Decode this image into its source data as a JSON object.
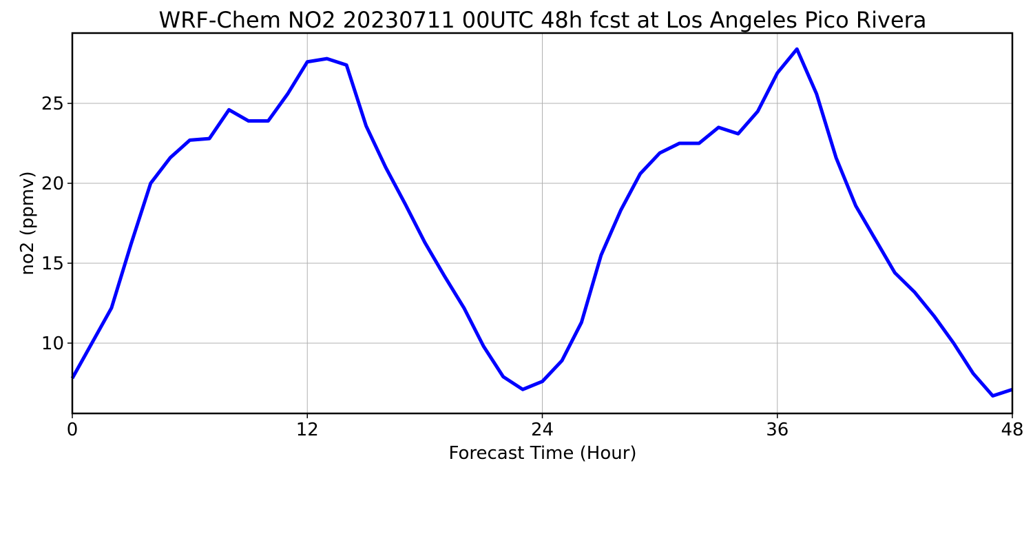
{
  "chart_data": {
    "type": "line",
    "title": "WRF-Chem NO2  20230711 00UTC 48h fcst at Los Angeles Pico Rivera",
    "xlabel": "Forecast Time (Hour)",
    "ylabel": "no2  (ppmv)",
    "xlim": [
      0,
      48
    ],
    "ylim": [
      5.6,
      29.4
    ],
    "xticks": [
      0,
      12,
      24,
      36,
      48
    ],
    "yticks": [
      10,
      15,
      20,
      25
    ],
    "grid": true,
    "legend": "none",
    "series": [
      {
        "color": "#0000ff",
        "x": [
          0,
          1,
          2,
          3,
          4,
          5,
          6,
          7,
          8,
          9,
          10,
          11,
          12,
          13,
          14,
          15,
          16,
          17,
          18,
          19,
          20,
          21,
          22,
          23,
          24,
          25,
          26,
          27,
          28,
          29,
          30,
          31,
          32,
          33,
          34,
          35,
          36,
          37,
          38,
          39,
          40,
          41,
          42,
          43,
          44,
          45,
          46,
          47,
          48
        ],
        "y": [
          7.8,
          10.0,
          12.2,
          16.2,
          20.0,
          21.6,
          22.7,
          22.8,
          24.6,
          23.9,
          23.9,
          25.6,
          27.6,
          27.8,
          27.4,
          23.6,
          21.0,
          18.7,
          16.3,
          14.2,
          12.2,
          9.8,
          7.9,
          7.1,
          7.6,
          8.9,
          11.3,
          15.5,
          18.3,
          20.6,
          21.9,
          22.5,
          22.5,
          23.5,
          23.1,
          24.5,
          26.9,
          28.4,
          25.6,
          21.6,
          18.6,
          16.5,
          14.4,
          13.2,
          11.7,
          10.0,
          8.1,
          6.7,
          7.1
        ]
      }
    ]
  }
}
